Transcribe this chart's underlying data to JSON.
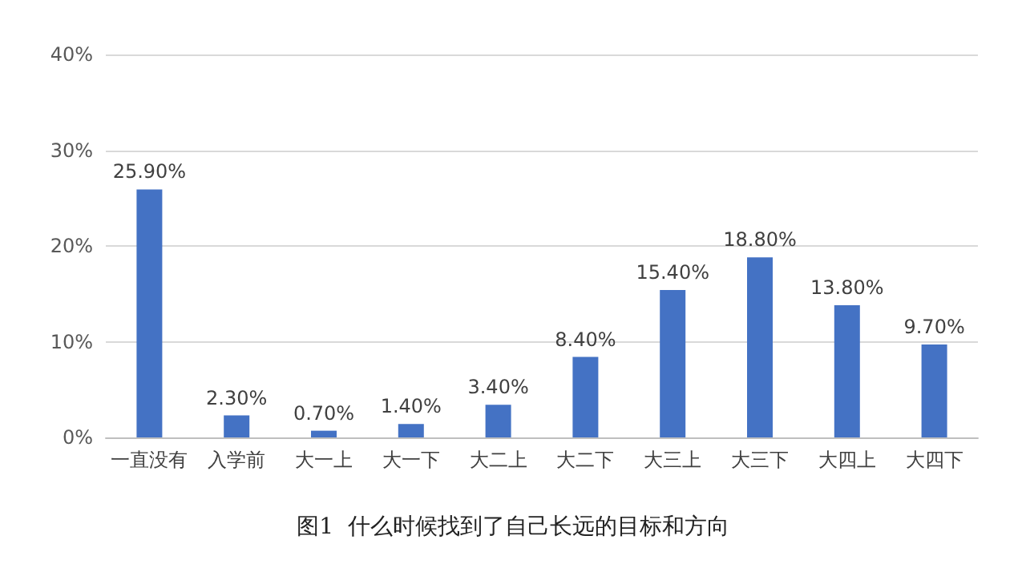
{
  "chart_data": {
    "type": "bar",
    "title": "图1  什么时候找到了自己长远的目标和方向",
    "categories": [
      "一直没有",
      "入学前",
      "大一上",
      "大一下",
      "大二上",
      "大二下",
      "大三上",
      "大三下",
      "大四上",
      "大四下"
    ],
    "values": [
      25.9,
      2.3,
      0.7,
      1.4,
      3.4,
      8.4,
      15.4,
      18.8,
      13.8,
      9.7
    ],
    "value_labels": [
      "25.90%",
      "2.30%",
      "0.70%",
      "1.40%",
      "3.40%",
      "8.40%",
      "15.40%",
      "18.80%",
      "13.80%",
      "9.70%"
    ],
    "color": "#4472c4",
    "ylim": [
      0,
      40
    ],
    "yticks": [
      {
        "value": 0,
        "label": "0%"
      },
      {
        "value": 10,
        "label": "10%"
      },
      {
        "value": 20,
        "label": "20%"
      },
      {
        "value": 30,
        "label": "30%"
      },
      {
        "value": 40,
        "label": "40%"
      }
    ],
    "grid": "y"
  }
}
